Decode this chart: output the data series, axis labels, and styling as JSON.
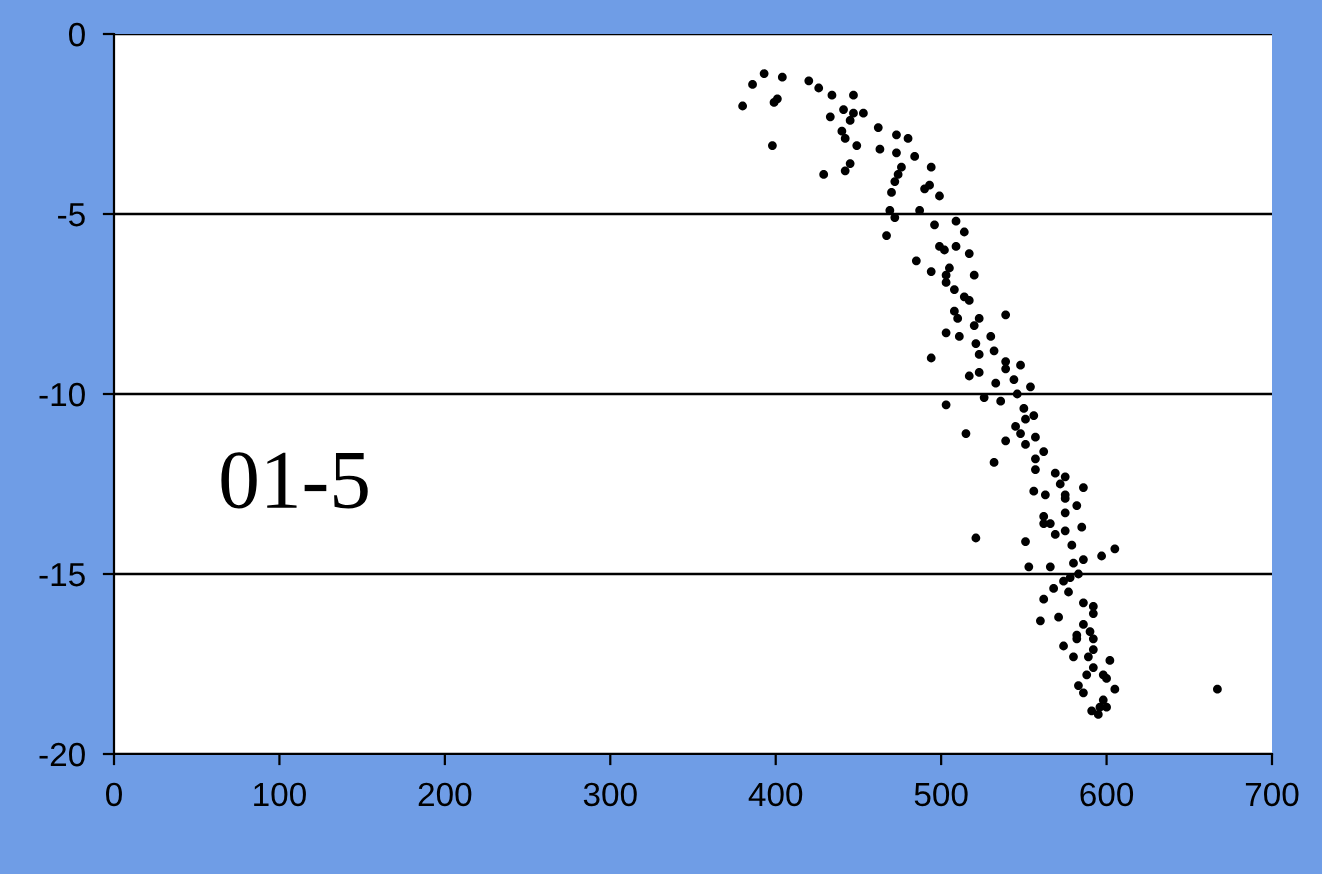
{
  "chart_data": {
    "type": "scatter",
    "xlim": [
      0,
      700
    ],
    "ylim": [
      -20,
      0
    ],
    "xticks": [
      0,
      100,
      200,
      300,
      400,
      500,
      600,
      700
    ],
    "yticks": [
      -20,
      -15,
      -10,
      -5,
      0
    ],
    "grid": "y",
    "marker": "circle",
    "annotations": [
      "01-5"
    ],
    "series": [
      {
        "color": "#000000",
        "x": [
          380,
          386,
          393,
          404,
          401,
          399,
          398,
          420,
          426,
          434,
          447,
          441,
          433,
          447,
          453,
          445,
          440,
          442,
          449,
          462,
          473,
          480,
          463,
          473,
          484,
          476,
          474,
          494,
          445,
          442,
          429,
          472,
          470,
          490,
          493,
          499,
          487,
          469,
          472,
          509,
          514,
          496,
          467,
          499,
          509,
          517,
          485,
          494,
          505,
          520,
          503,
          508,
          514,
          517,
          502,
          503,
          508,
          510,
          523,
          520,
          539,
          503,
          511,
          521,
          523,
          530,
          532,
          494,
          539,
          548,
          539,
          517,
          523,
          533,
          544,
          554,
          546,
          526,
          536,
          503,
          550,
          556,
          551,
          545,
          548,
          557,
          551,
          562,
          515,
          539,
          532,
          557,
          557,
          569,
          575,
          572,
          586,
          556,
          563,
          575,
          582,
          575,
          562,
          575,
          562,
          566,
          585,
          569,
          575,
          551,
          579,
          605,
          597,
          586,
          553,
          566,
          580,
          583,
          578,
          574,
          568,
          577,
          562,
          586,
          592,
          592,
          560,
          571,
          586,
          582,
          590,
          582,
          574,
          592,
          592,
          580,
          589,
          602,
          592,
          598,
          588,
          583,
          605,
          600,
          586,
          598,
          600,
          596,
          591,
          595,
          667,
          521
        ],
        "values": [
          -2.0,
          -1.4,
          -1.1,
          -1.2,
          -1.8,
          -1.9,
          -3.1,
          -1.3,
          -1.5,
          -1.7,
          -1.7,
          -2.1,
          -2.3,
          -2.2,
          -2.2,
          -2.4,
          -2.7,
          -2.9,
          -3.1,
          -2.6,
          -2.8,
          -2.9,
          -3.2,
          -3.3,
          -3.4,
          -3.7,
          -3.9,
          -3.7,
          -3.6,
          -3.8,
          -3.9,
          -4.1,
          -4.4,
          -4.3,
          -4.2,
          -4.5,
          -4.9,
          -4.9,
          -5.1,
          -5.2,
          -5.5,
          -5.3,
          -5.6,
          -5.9,
          -5.9,
          -6.1,
          -6.3,
          -6.6,
          -6.5,
          -6.7,
          -6.9,
          -7.1,
          -7.3,
          -7.4,
          -6.0,
          -6.7,
          -7.7,
          -7.9,
          -7.9,
          -8.1,
          -7.8,
          -8.3,
          -8.4,
          -8.6,
          -8.9,
          -8.4,
          -8.8,
          -9.0,
          -9.1,
          -9.2,
          -9.3,
          -9.5,
          -9.4,
          -9.7,
          -9.6,
          -9.8,
          -10.0,
          -10.1,
          -10.2,
          -10.3,
          -10.4,
          -10.6,
          -10.7,
          -10.9,
          -11.1,
          -11.2,
          -11.4,
          -11.6,
          -11.1,
          -11.3,
          -11.9,
          -11.8,
          -12.1,
          -12.2,
          -12.3,
          -12.5,
          -12.6,
          -12.7,
          -12.8,
          -12.8,
          -13.1,
          -13.3,
          -13.4,
          -12.9,
          -13.6,
          -13.6,
          -13.7,
          -13.9,
          -13.8,
          -14.1,
          -14.2,
          -14.3,
          -14.5,
          -14.6,
          -14.8,
          -14.8,
          -14.7,
          -15.0,
          -15.1,
          -15.2,
          -15.4,
          -15.5,
          -15.7,
          -15.8,
          -15.9,
          -16.1,
          -16.3,
          -16.2,
          -16.4,
          -16.7,
          -16.6,
          -16.8,
          -17.0,
          -16.8,
          -17.1,
          -17.3,
          -17.3,
          -17.4,
          -17.6,
          -17.8,
          -17.8,
          -18.1,
          -18.2,
          -17.9,
          -18.3,
          -18.5,
          -18.7,
          -18.7,
          -18.8,
          -18.9,
          -18.2,
          -14.0
        ]
      }
    ]
  }
}
